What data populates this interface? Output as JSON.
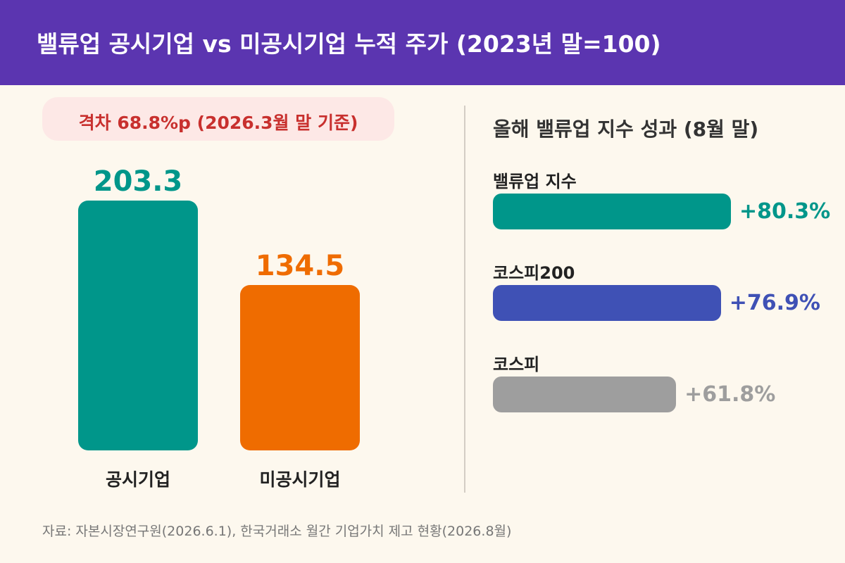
{
  "header": {
    "title": "밸류업 공시기업 vs 미공시기업 누적 주가 (2023년 말=100)",
    "background": "#5b35b0"
  },
  "gap_badge": {
    "text": "격차 68.8%p (2026.3월 말 기준)"
  },
  "right_panel": {
    "title": "올해 밸류업 지수 성과 (8월 말)"
  },
  "source": "자료: 자본시장연구원(2026.6.1), 한국거래소 월간 기업가치 제고 현황(2026.8월)",
  "chart_data": [
    {
      "type": "bar",
      "title": "밸류업 공시기업 vs 미공시기업 누적 주가 (2023년 말=100)",
      "categories": [
        "공시기업",
        "미공시기업"
      ],
      "values": [
        203.3,
        134.5
      ],
      "value_labels": [
        "203.3",
        "134.5"
      ],
      "colors": [
        "#00968a",
        "#ef6c00"
      ],
      "annotation": "격차 68.8%p (2026.3월 말 기준)",
      "ylim": [
        0,
        210
      ],
      "grid": false
    },
    {
      "type": "bar",
      "orientation": "horizontal",
      "title": "올해 밸류업 지수 성과 (8월 말)",
      "categories": [
        "밸류업 지수",
        "코스피200",
        "코스피"
      ],
      "values": [
        80.3,
        76.9,
        61.8
      ],
      "value_labels": [
        "+80.3%",
        "+76.9%",
        "+61.8%"
      ],
      "colors": [
        "#00968a",
        "#3f51b5",
        "#9e9e9e"
      ],
      "value_colors": [
        "#00968a",
        "#3f51b5",
        "#9e9e9e"
      ],
      "xlim": [
        0,
        95
      ],
      "grid": false
    }
  ]
}
